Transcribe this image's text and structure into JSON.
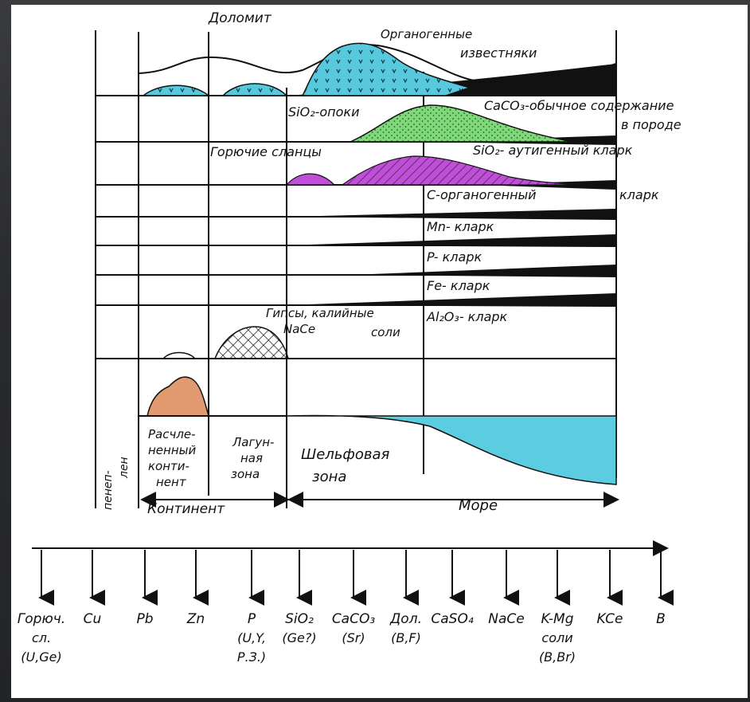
{
  "labels": {
    "dolomit": "Доломит",
    "organogen_1": "Органогенные",
    "organogen_2": "известняки",
    "sio2_opoki": "SiO₂-опоки",
    "caco3_1": "CaCO₃-обычное содержание",
    "caco3_2": "в породе",
    "goryuchie": "Горючие сланцы",
    "sio2_autigen": "SiO₂- аутигенный кларк",
    "c_organogen": "С-органогенный",
    "c_klark": "кларк",
    "mn": "Mn- кларк",
    "p": "P- кларк",
    "fe": "Fe- кларк",
    "al": "Al₂O₃- кларк",
    "gipsy": "Гипсы, калийные",
    "nacl": "NaCe",
    "soli": "соли"
  },
  "zones": {
    "peneplain_1": "пенеп-",
    "peneplain_2": "лен",
    "raschl_1": "Расчле-",
    "raschl_2": "ненный",
    "raschl_3": "конти-",
    "raschl_4": "нент",
    "lagun_1": "Лагун-",
    "lagun_2": "ная",
    "lagun_3": "зона",
    "shelf_1": "Шельфовая",
    "shelf_2": "зона",
    "continent": "Континент",
    "more": "Море"
  },
  "sequence": [
    {
      "top": "Горюч.",
      "l2": "сл.",
      "l3": "(U,Ge)"
    },
    {
      "top": "Cu"
    },
    {
      "top": "Pb"
    },
    {
      "top": "Zn"
    },
    {
      "top": "P",
      "l2": "(U,Y,",
      "l3": "Р.З.)"
    },
    {
      "top": "SiO₂",
      "l2": "(Ge?)"
    },
    {
      "top": "CaCO₃",
      "l2": "(Sr)"
    },
    {
      "top": "Дол.",
      "l2": "(B,F)"
    },
    {
      "top": "CaSO₄"
    },
    {
      "top": "NaCe"
    },
    {
      "top": "K-Mg",
      "l2": "соли",
      "l3": "(B,Br)"
    },
    {
      "top": "KCe"
    },
    {
      "top": "B"
    }
  ],
  "colors": {
    "cyan": "#58c8dc",
    "green": "#7fd97a",
    "purple": "#c04fd8",
    "salmon": "#e29a70",
    "sea": "#5ccde0"
  }
}
